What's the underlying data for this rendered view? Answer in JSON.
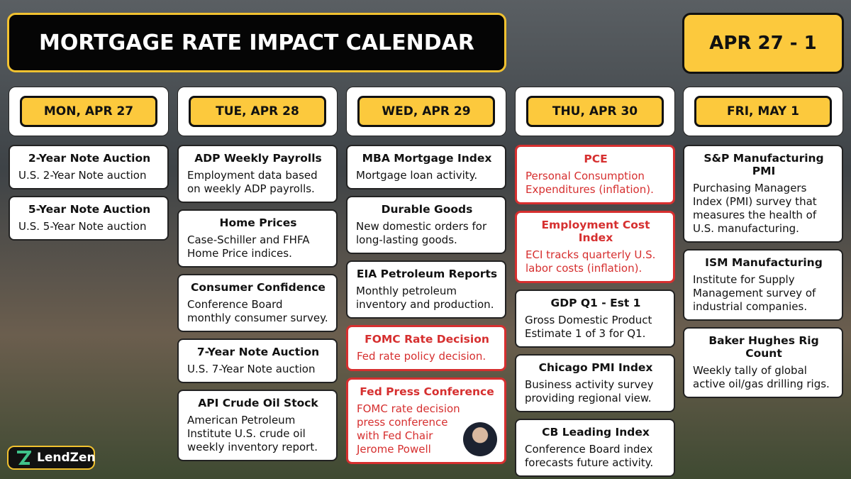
{
  "header": {
    "title": "MORTGAGE RATE IMPACT CALENDAR",
    "date_range": "APR 27 - 1"
  },
  "days": [
    {
      "label": "MON, APR 27",
      "events": [
        {
          "title": "2-Year Note Auction",
          "description": "U.S. 2-Year Note auction"
        },
        {
          "title": "5-Year Note Auction",
          "description": "U.S. 5-Year Note auction"
        }
      ]
    },
    {
      "label": "TUE, APR 28",
      "events": [
        {
          "title": "ADP Weekly Payrolls",
          "description": "Employment data based on weekly ADP payrolls."
        },
        {
          "title": "Home Prices",
          "description": "Case-Schiller and FHFA Home Price indices."
        },
        {
          "title": "Consumer Confidence",
          "description": "Conference Board monthly consumer survey."
        },
        {
          "title": "7-Year Note Auction",
          "description": "U.S. 7-Year Note auction"
        },
        {
          "title": "API Crude Oil Stock",
          "description": "American Petroleum Institute U.S. crude oil weekly inventory report."
        }
      ]
    },
    {
      "label": "WED, APR 29",
      "events": [
        {
          "title": "MBA Mortgage Index",
          "description": "Mortgage loan activity."
        },
        {
          "title": "Durable Goods",
          "description": "New domestic orders for long-lasting goods."
        },
        {
          "title": "EIA Petroleum Reports",
          "description": "Monthly petroleum inventory and production."
        },
        {
          "title": "FOMC Rate Decision",
          "description": "Fed rate policy decision.",
          "highlight": true
        },
        {
          "title": "Fed Press Conference",
          "description": "FOMC rate decision press conference with Fed Chair Jerome Powell",
          "highlight": true
        }
      ]
    },
    {
      "label": "THU, APR 30",
      "events": [
        {
          "title": "PCE",
          "description": "Personal Consumption Expenditures (inflation).",
          "highlight": true
        },
        {
          "title": "Employment Cost Index",
          "description": "ECI tracks quarterly U.S. labor costs (inflation).",
          "highlight": true
        },
        {
          "title": "GDP Q1 - Est 1",
          "description": "Gross Domestic Product Estimate 1 of 3 for Q1."
        },
        {
          "title": "Chicago PMI Index",
          "description": "Business activity survey providing regional view."
        },
        {
          "title": "CB Leading Index",
          "description": "Conference Board index forecasts future activity."
        }
      ]
    },
    {
      "label": "FRI, MAY 1",
      "events": [
        {
          "title": "S&P Manufacturing PMI",
          "description": "Purchasing Managers Index (PMI) survey that measures the health of U.S. manufacturing."
        },
        {
          "title": "ISM Manufacturing",
          "description": "Institute for Supply Management survey of industrial companies."
        },
        {
          "title": "Baker Hughes Rig Count",
          "description": "Weekly tally of global active oil/gas drilling rigs."
        }
      ]
    }
  ],
  "brand": "LendZen"
}
